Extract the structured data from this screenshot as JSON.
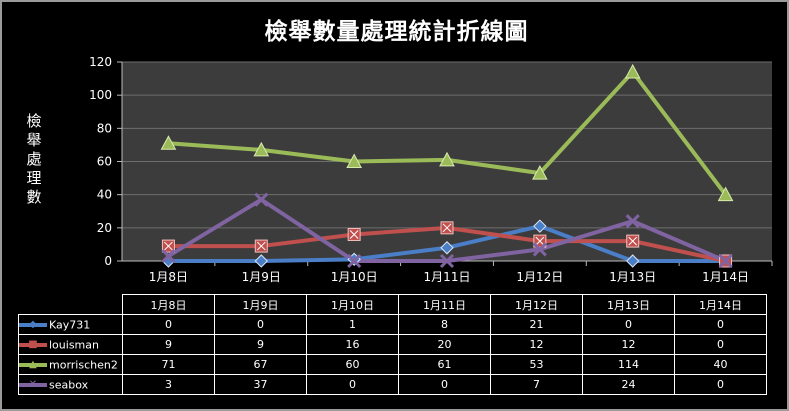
{
  "chart_data": {
    "type": "line",
    "title": "檢舉數量處理統計折線圖",
    "ylabel": "檢舉處理數",
    "xlabel": "",
    "categories": [
      "1月8日",
      "1月9日",
      "1月10日",
      "1月11日",
      "1月12日",
      "1月13日",
      "1月14日"
    ],
    "ylim": [
      0,
      120
    ],
    "yticks": [
      0,
      20,
      40,
      60,
      80,
      100,
      120
    ],
    "grid": true,
    "legend": "data-table-below",
    "series": [
      {
        "name": "Kay731",
        "values": [
          0,
          0,
          1,
          8,
          21,
          0,
          0
        ],
        "color": "#4a7ec7",
        "marker": "diamond",
        "marker_icon": "diamond-marker-icon"
      },
      {
        "name": "louisman",
        "values": [
          9,
          9,
          16,
          20,
          12,
          12,
          0
        ],
        "color": "#c0504d",
        "marker": "square-x",
        "marker_icon": "square-marker-icon"
      },
      {
        "name": "morrischen2",
        "values": [
          71,
          67,
          60,
          61,
          53,
          114,
          40
        ],
        "color": "#9bbb59",
        "marker": "triangle",
        "marker_icon": "triangle-marker-icon"
      },
      {
        "name": "seabox",
        "values": [
          3,
          37,
          0,
          0,
          7,
          24,
          0
        ],
        "color": "#8064a2",
        "marker": "x",
        "marker_icon": "x-marker-icon"
      }
    ],
    "plot_background": "#3c3c3c",
    "grid_color": "#6e6e6e"
  }
}
